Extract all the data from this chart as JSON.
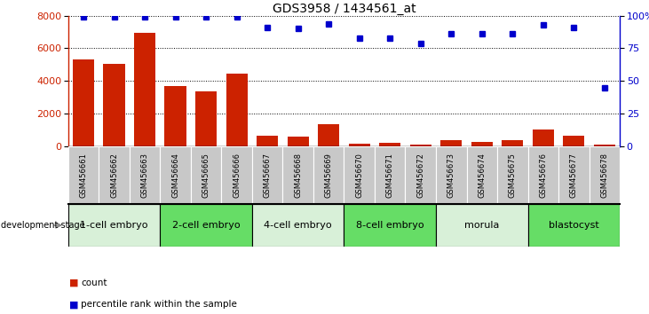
{
  "title": "GDS3958 / 1434561_at",
  "samples": [
    "GSM456661",
    "GSM456662",
    "GSM456663",
    "GSM456664",
    "GSM456665",
    "GSM456666",
    "GSM456667",
    "GSM456668",
    "GSM456669",
    "GSM456670",
    "GSM456671",
    "GSM456672",
    "GSM456673",
    "GSM456674",
    "GSM456675",
    "GSM456676",
    "GSM456677",
    "GSM456678"
  ],
  "counts": [
    5300,
    5050,
    6950,
    3700,
    3350,
    4450,
    650,
    600,
    1350,
    150,
    200,
    100,
    350,
    250,
    350,
    1000,
    650,
    80
  ],
  "percentiles": [
    99,
    99,
    99,
    99,
    99,
    99,
    91,
    90,
    94,
    83,
    83,
    79,
    86,
    86,
    86,
    93,
    91,
    45
  ],
  "bar_color": "#cc2200",
  "dot_color": "#0000cc",
  "ylim_left": [
    0,
    8000
  ],
  "ylim_right": [
    0,
    100
  ],
  "yticks_left": [
    0,
    2000,
    4000,
    6000,
    8000
  ],
  "yticks_right": [
    0,
    25,
    50,
    75,
    100
  ],
  "stages": [
    {
      "label": "1-cell embryo",
      "start": 0,
      "end": 3
    },
    {
      "label": "2-cell embryo",
      "start": 3,
      "end": 6
    },
    {
      "label": "4-cell embryo",
      "start": 6,
      "end": 9
    },
    {
      "label": "8-cell embryo",
      "start": 9,
      "end": 12
    },
    {
      "label": "morula",
      "start": 12,
      "end": 15
    },
    {
      "label": "blastocyst",
      "start": 15,
      "end": 18
    }
  ],
  "stage_colors": [
    "#d8f0d8",
    "#66dd66",
    "#d8f0d8",
    "#66dd66",
    "#d8f0d8",
    "#66dd66"
  ],
  "dev_stage_label": "development stage",
  "legend_count_label": "count",
  "legend_pct_label": "percentile rank within the sample",
  "background_color": "#ffffff",
  "tick_bg_color": "#c8c8c8",
  "grid_color": "#000000",
  "title_fontsize": 10,
  "axis_fontsize": 8,
  "stage_fontsize": 8,
  "label_fontsize": 6
}
